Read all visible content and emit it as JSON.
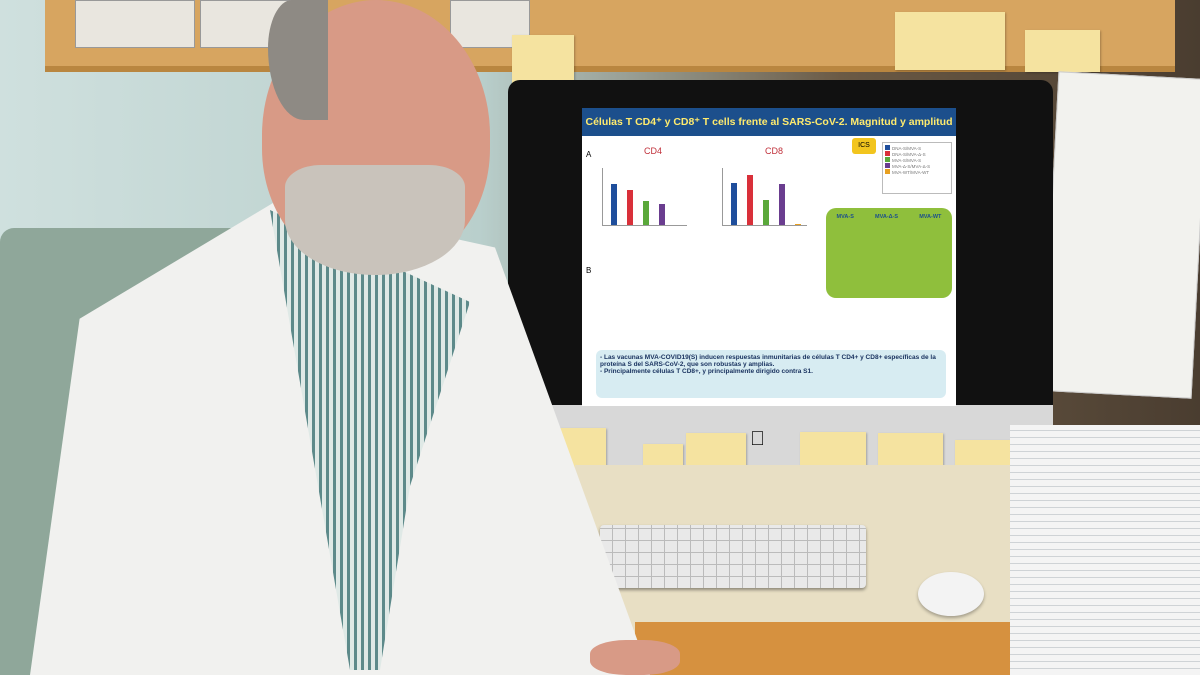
{
  "slide": {
    "title": "Células T CD4⁺ y CD8⁺ T cells frente al SARS-CoV-2. Magnitud y amplitud",
    "panel_a": "A",
    "panel_b": "B",
    "cd4_label": "CD4",
    "cd8_label": "CD8",
    "ics_badge": "ICS",
    "legend": [
      "DNA-S/MVA-S",
      "DNA-S/MVA-Δ-S",
      "MVA-S/MVA-S",
      "MVA-Δ-S/MVA-Δ-S",
      "MVA-WT/MVA-WT"
    ],
    "flow_labels": [
      "MVA-S",
      "MVA-Δ-S",
      "MVA-WT"
    ],
    "bullet_1": "- Las vacunas MVA-COVID19(S) inducen respuestas inmunitarias de células T CD4+ y CD8+ específicas de la proteína S del SARS-CoV-2, que son robustas y amplias.",
    "bullet_2": "- Principalmente células T CD8+, y principalmente dirigido contra S1."
  },
  "chart_data": [
    {
      "type": "bar",
      "title": "CD4",
      "categories": [
        "DNA-S/MVA-S",
        "DNA-S/MVA-Δ-S",
        "MVA-S/MVA-S",
        "MVA-Δ-S/MVA-Δ-S",
        "MVA-WT/MVA-WT"
      ],
      "values": [
        1.1,
        0.95,
        0.65,
        0.55,
        0
      ],
      "ylim": [
        0,
        1.5
      ]
    },
    {
      "type": "bar",
      "title": "CD8",
      "categories": [
        "DNA-S/MVA-S",
        "DNA-S/MVA-Δ-S",
        "MVA-S/MVA-S",
        "MVA-Δ-S/MVA-Δ-S",
        "MVA-WT/MVA-WT"
      ],
      "values": [
        7.5,
        9,
        4.5,
        7.3,
        0.1
      ],
      "ylim": [
        0,
        10
      ]
    }
  ],
  "colors": {
    "series": [
      "#1f4e9c",
      "#d9303a",
      "#5aa83a",
      "#6a3d8f",
      "#e8a020"
    ],
    "slide_header": "#1c4f8c"
  }
}
